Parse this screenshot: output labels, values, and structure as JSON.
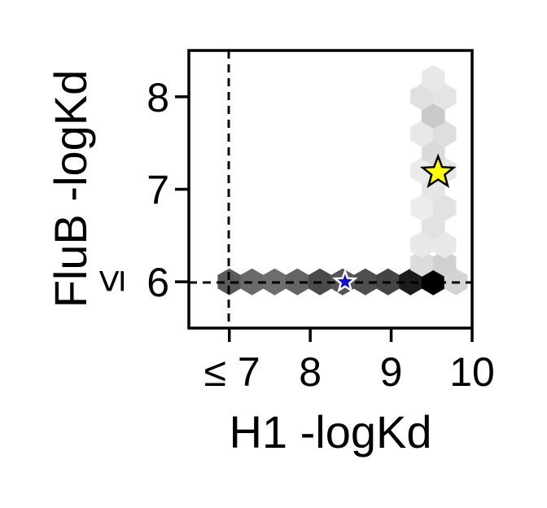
{
  "chart_data": {
    "type": "hexbin",
    "xlabel": "H1 -logKd",
    "ylabel": "FluB -logKd",
    "xlim": [
      6.5,
      10.0
    ],
    "ylim": [
      5.5,
      8.5
    ],
    "x_ticks": [
      {
        "value": 7,
        "label": "≤ 7"
      },
      {
        "value": 8,
        "label": "8"
      },
      {
        "value": 9,
        "label": "9"
      },
      {
        "value": 10,
        "label": "10"
      }
    ],
    "y_ticks": [
      {
        "value": 6,
        "label": "6",
        "prefix": "≤"
      },
      {
        "value": 7,
        "label": "7"
      },
      {
        "value": 8,
        "label": "8"
      }
    ],
    "threshold_lines": {
      "x": 7,
      "y": 6,
      "style": "dashed"
    },
    "hexbins": [
      {
        "x": 7.0,
        "y": 6.0,
        "gray": "#5a5a5a"
      },
      {
        "x": 7.28,
        "y": 6.0,
        "gray": "#6a6a6a"
      },
      {
        "x": 7.56,
        "y": 6.0,
        "gray": "#6e6e6e"
      },
      {
        "x": 7.84,
        "y": 6.0,
        "gray": "#646464"
      },
      {
        "x": 8.12,
        "y": 6.0,
        "gray": "#4a4a4a"
      },
      {
        "x": 8.4,
        "y": 6.0,
        "gray": "#555555"
      },
      {
        "x": 8.68,
        "y": 6.0,
        "gray": "#4e4e4e"
      },
      {
        "x": 8.96,
        "y": 6.0,
        "gray": "#444444"
      },
      {
        "x": 9.24,
        "y": 6.0,
        "gray": "#1c1c1c"
      },
      {
        "x": 9.52,
        "y": 6.0,
        "gray": "#000000"
      },
      {
        "x": 9.8,
        "y": 6.0,
        "gray": "#d4d4d4"
      },
      {
        "x": 9.38,
        "y": 6.2,
        "gray": "#dcdcdc"
      },
      {
        "x": 9.66,
        "y": 6.2,
        "gray": "#d0d0d0"
      },
      {
        "x": 9.38,
        "y": 6.4,
        "gray": "#e8e8e8"
      },
      {
        "x": 9.66,
        "y": 6.4,
        "gray": "#e8e8e8"
      },
      {
        "x": 9.52,
        "y": 6.6,
        "gray": "#e2e2e2"
      },
      {
        "x": 9.38,
        "y": 6.8,
        "gray": "#ececec"
      },
      {
        "x": 9.66,
        "y": 6.8,
        "gray": "#e2e2e2"
      },
      {
        "x": 9.52,
        "y": 7.0,
        "gray": "#e6e6e6"
      },
      {
        "x": 9.38,
        "y": 7.2,
        "gray": "#ebebeb"
      },
      {
        "x": 9.66,
        "y": 7.2,
        "gray": "#e6e6e6"
      },
      {
        "x": 9.52,
        "y": 7.4,
        "gray": "#dadada"
      },
      {
        "x": 9.38,
        "y": 7.6,
        "gray": "#e8e8e8"
      },
      {
        "x": 9.66,
        "y": 7.6,
        "gray": "#dedede"
      },
      {
        "x": 9.52,
        "y": 7.8,
        "gray": "#c9c9c9"
      },
      {
        "x": 9.38,
        "y": 8.0,
        "gray": "#e0e0e0"
      },
      {
        "x": 9.66,
        "y": 8.0,
        "gray": "#e4e4e4"
      },
      {
        "x": 9.52,
        "y": 8.2,
        "gray": "#e8e8e8"
      }
    ],
    "markers": [
      {
        "x": 8.43,
        "y": 6.0,
        "shape": "star",
        "fill": "#1010c8",
        "stroke": "#ffffff"
      },
      {
        "x": 9.58,
        "y": 7.18,
        "shape": "star",
        "fill": "#ffff00",
        "stroke": "#000000"
      }
    ]
  }
}
